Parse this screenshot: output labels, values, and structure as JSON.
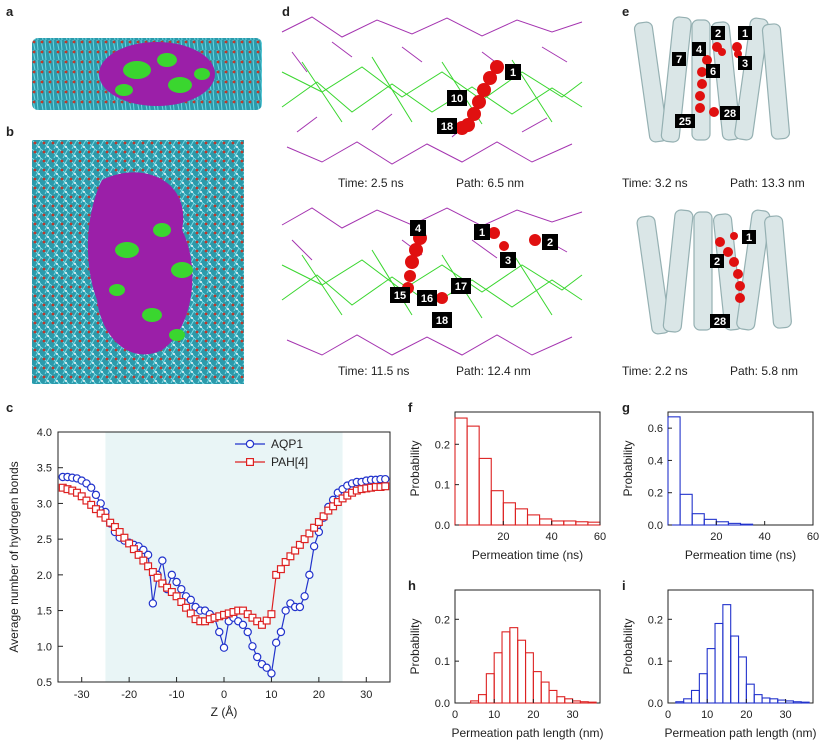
{
  "panels": {
    "a": "a",
    "b": "b",
    "c": "c",
    "d": "d",
    "e": "e",
    "f": "f",
    "g": "g",
    "h": "h",
    "i": "i"
  },
  "colors": {
    "lipid_tail": "#3ab8c8",
    "lipid_head": "#c0392b",
    "pah_purple": "#9b1fa8",
    "pah_green": "#3ad62f",
    "water_red": "#e01010",
    "protein": "#b8cfd0",
    "aqp1_blue": "#2233cc",
    "pah_red": "#dd2222",
    "label_bg": "#000000"
  },
  "panel_d": {
    "top": {
      "time": "Time: 2.5 ns",
      "path": "Path: 6.5 nm",
      "labels": [
        "1",
        "10",
        "18"
      ]
    },
    "bottom": {
      "time": "Time: 11.5 ns",
      "path": "Path: 12.4 nm",
      "labels": [
        "4",
        "1",
        "2",
        "3",
        "15",
        "16",
        "17",
        "18"
      ]
    }
  },
  "panel_e": {
    "top": {
      "time": "Time: 3.2 ns",
      "path": "Path: 13.3 nm",
      "labels": [
        "4",
        "2",
        "1",
        "7",
        "6",
        "3",
        "25",
        "28"
      ]
    },
    "bottom": {
      "time": "Time: 2.2 ns",
      "path": "Path: 5.8 nm",
      "labels": [
        "1",
        "2",
        "28"
      ]
    }
  },
  "chart_data": [
    {
      "panel": "c",
      "type": "line",
      "xlabel": "Z (Å)",
      "ylabel": "Average number of hydrogen bonds",
      "xlim": [
        -35,
        35
      ],
      "ylim": [
        0.5,
        4.0
      ],
      "xticks": [
        -30,
        -20,
        -10,
        0,
        10,
        20,
        30
      ],
      "yticks": [
        0.5,
        1.0,
        1.5,
        2.0,
        2.5,
        3.0,
        3.5,
        4.0
      ],
      "legend_position": "top-right",
      "series": [
        {
          "name": "AQP1",
          "color": "#2233cc",
          "marker": "circle",
          "x": [
            -34,
            -33,
            -32,
            -31,
            -30,
            -29,
            -28,
            -27,
            -26,
            -25,
            -24,
            -23,
            -22,
            -21,
            -20,
            -19,
            -18,
            -17,
            -16,
            -15,
            -14,
            -13,
            -12,
            -11,
            -10,
            -9,
            -8,
            -7,
            -6,
            -5,
            -4,
            -3,
            -2,
            -1,
            0,
            1,
            2,
            3,
            4,
            5,
            6,
            7,
            8,
            9,
            10,
            11,
            12,
            13,
            14,
            15,
            16,
            17,
            18,
            19,
            20,
            21,
            22,
            23,
            24,
            25,
            26,
            27,
            28,
            29,
            30,
            31,
            32,
            33,
            34
          ],
          "y": [
            3.37,
            3.37,
            3.36,
            3.35,
            3.32,
            3.28,
            3.22,
            3.12,
            3.0,
            2.88,
            2.72,
            2.6,
            2.52,
            2.48,
            2.45,
            2.42,
            2.4,
            2.35,
            2.28,
            1.6,
            2.0,
            2.2,
            1.8,
            2.0,
            1.9,
            1.8,
            1.7,
            1.65,
            1.55,
            1.5,
            1.5,
            1.45,
            1.4,
            1.2,
            0.98,
            1.35,
            1.4,
            1.35,
            1.3,
            1.2,
            1.0,
            0.85,
            0.75,
            0.7,
            0.62,
            1.05,
            1.2,
            1.5,
            1.6,
            1.55,
            1.55,
            1.7,
            2.0,
            2.4,
            2.6,
            2.8,
            2.95,
            3.05,
            3.15,
            3.2,
            3.25,
            3.28,
            3.3,
            3.3,
            3.32,
            3.33,
            3.33,
            3.34,
            3.34
          ]
        },
        {
          "name": "PAH[4]",
          "color": "#dd2222",
          "marker": "square",
          "x": [
            -34,
            -33,
            -32,
            -31,
            -30,
            -29,
            -28,
            -27,
            -26,
            -25,
            -24,
            -23,
            -22,
            -21,
            -20,
            -19,
            -18,
            -17,
            -16,
            -15,
            -14,
            -13,
            -12,
            -11,
            -10,
            -9,
            -8,
            -7,
            -6,
            -5,
            -4,
            -3,
            -2,
            -1,
            0,
            1,
            2,
            3,
            4,
            5,
            6,
            7,
            8,
            9,
            10,
            11,
            12,
            13,
            14,
            15,
            16,
            17,
            18,
            19,
            20,
            21,
            22,
            23,
            24,
            25,
            26,
            27,
            28,
            29,
            30,
            31,
            32,
            33,
            34
          ],
          "y": [
            3.22,
            3.2,
            3.18,
            3.15,
            3.1,
            3.04,
            2.98,
            2.92,
            2.86,
            2.8,
            2.73,
            2.67,
            2.6,
            2.52,
            2.44,
            2.36,
            2.28,
            2.2,
            2.12,
            2.04,
            1.96,
            1.88,
            1.82,
            1.76,
            1.7,
            1.62,
            1.54,
            1.46,
            1.38,
            1.35,
            1.35,
            1.38,
            1.4,
            1.42,
            1.44,
            1.46,
            1.48,
            1.5,
            1.5,
            1.45,
            1.4,
            1.35,
            1.3,
            1.36,
            1.45,
            2.0,
            2.08,
            2.18,
            2.26,
            2.34,
            2.42,
            2.5,
            2.58,
            2.66,
            2.74,
            2.82,
            2.9,
            2.96,
            3.02,
            3.07,
            3.11,
            3.15,
            3.18,
            3.2,
            3.21,
            3.22,
            3.23,
            3.23,
            3.24
          ]
        }
      ]
    },
    {
      "panel": "f",
      "type": "bar",
      "histogram": true,
      "xlabel": "Permeation time (ns)",
      "ylabel": "Probability",
      "color": "#dd2222",
      "xlim": [
        0,
        60
      ],
      "ylim": [
        0,
        0.28
      ],
      "xticks": [
        20,
        40,
        60
      ],
      "yticks": [
        0.0,
        0.1,
        0.2
      ],
      "bin_edges": [
        0,
        5,
        10,
        15,
        20,
        25,
        30,
        35,
        40,
        45,
        50,
        55,
        60
      ],
      "values": [
        0.265,
        0.245,
        0.165,
        0.085,
        0.055,
        0.04,
        0.025,
        0.015,
        0.01,
        0.01,
        0.008,
        0.007
      ]
    },
    {
      "panel": "g",
      "type": "bar",
      "histogram": true,
      "xlabel": "Permeation time (ns)",
      "ylabel": "Probability",
      "color": "#2233cc",
      "xlim": [
        0,
        60
      ],
      "ylim": [
        0,
        0.7
      ],
      "xticks": [
        20,
        40,
        60
      ],
      "yticks": [
        0.0,
        0.2,
        0.4,
        0.6
      ],
      "bin_edges": [
        0,
        5,
        10,
        15,
        20,
        25,
        30,
        35
      ],
      "values": [
        0.67,
        0.19,
        0.07,
        0.035,
        0.02,
        0.01,
        0.005
      ]
    },
    {
      "panel": "h",
      "type": "bar",
      "histogram": true,
      "xlabel": "Permeation path length (nm)",
      "ylabel": "Probability",
      "color": "#dd2222",
      "xlim": [
        0,
        37
      ],
      "ylim": [
        0,
        0.27
      ],
      "xticks": [
        0,
        10,
        20,
        30
      ],
      "yticks": [
        0.0,
        0.1,
        0.2
      ],
      "bin_edges": [
        4,
        6,
        8,
        10,
        12,
        14,
        16,
        18,
        20,
        22,
        24,
        26,
        28,
        30,
        32,
        34,
        36
      ],
      "values": [
        0.005,
        0.02,
        0.07,
        0.12,
        0.17,
        0.18,
        0.15,
        0.12,
        0.075,
        0.05,
        0.03,
        0.015,
        0.01,
        0.005,
        0.003,
        0.002
      ]
    },
    {
      "panel": "i",
      "type": "bar",
      "histogram": true,
      "xlabel": "Permeation path length (nm)",
      "ylabel": "Probability",
      "color": "#2233cc",
      "xlim": [
        0,
        37
      ],
      "ylim": [
        0,
        0.27
      ],
      "xticks": [
        0,
        10,
        20,
        30
      ],
      "yticks": [
        0.0,
        0.1,
        0.2
      ],
      "bin_edges": [
        2,
        4,
        6,
        8,
        10,
        12,
        14,
        16,
        18,
        20,
        22,
        24,
        26,
        28,
        30,
        32,
        34,
        36
      ],
      "values": [
        0.003,
        0.01,
        0.03,
        0.07,
        0.13,
        0.19,
        0.235,
        0.16,
        0.11,
        0.045,
        0.02,
        0.012,
        0.01,
        0.007,
        0.005,
        0.003,
        0.002
      ]
    }
  ]
}
